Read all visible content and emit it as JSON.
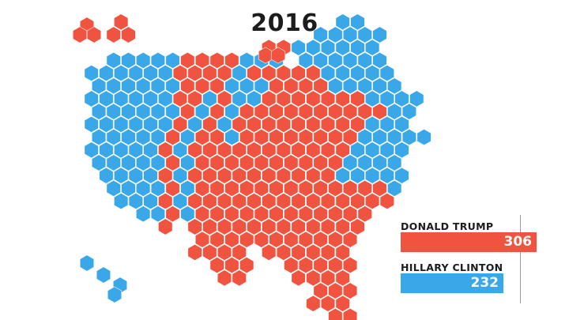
{
  "title": "2016",
  "colors": {
    "rep": "#f05440",
    "dem": "#3aa8e8",
    "grid": "#ffffff"
  },
  "legend": {
    "max_votes": 306,
    "candidates": [
      {
        "name": "DONALD TRUMP",
        "votes": "306",
        "value": 306,
        "color": "#f05440"
      },
      {
        "name": "HILLARY CLINTON",
        "votes": "232",
        "value": 232,
        "color": "#3aa8e8"
      }
    ]
  },
  "map_rows": [
    {
      "row": 0,
      "segments": [
        [
          "R",
          3,
          1
        ],
        [
          "D",
          18,
          2
        ]
      ]
    },
    {
      "row": 1,
      "segments": [
        [
          "R",
          2,
          2
        ],
        [
          "D",
          16,
          5
        ]
      ]
    },
    {
      "row": 2,
      "segments": [
        [
          "R",
          13,
          2
        ],
        [
          "D",
          15,
          6
        ]
      ]
    },
    {
      "row": 3,
      "segments": [
        [
          "D",
          2,
          6
        ],
        [
          "R",
          7,
          4
        ],
        [
          "D",
          11,
          3
        ],
        [
          "R",
          17,
          1
        ],
        [
          "D",
          15,
          6
        ]
      ]
    },
    {
      "row": 4,
      "segments": [
        [
          "D",
          1,
          6
        ],
        [
          "R",
          7,
          4
        ],
        [
          "D",
          11,
          2
        ],
        [
          "R",
          12,
          2
        ],
        [
          "R",
          14,
          3
        ],
        [
          "D",
          17,
          5
        ]
      ]
    },
    {
      "row": 5,
      "segments": [
        [
          "D",
          1,
          6
        ],
        [
          "R",
          7,
          3
        ],
        [
          "D",
          10,
          3
        ],
        [
          "R",
          13,
          3
        ],
        [
          "R",
          14,
          3
        ],
        [
          "D",
          17,
          5
        ]
      ]
    },
    {
      "row": 6,
      "segments": [
        [
          "D",
          1,
          6
        ],
        [
          "R",
          7,
          2
        ],
        [
          "D",
          9,
          1
        ],
        [
          "R",
          10,
          1
        ],
        [
          "D",
          11,
          2
        ],
        [
          "R",
          13,
          3
        ],
        [
          "R",
          14,
          6
        ],
        [
          "D",
          20,
          4
        ]
      ]
    },
    {
      "row": 7,
      "segments": [
        [
          "D",
          1,
          6
        ],
        [
          "R",
          7,
          1
        ],
        [
          "D",
          8,
          1
        ],
        [
          "R",
          9,
          1
        ],
        [
          "D",
          10,
          1
        ],
        [
          "R",
          11,
          5
        ],
        [
          "D",
          16,
          1
        ],
        [
          "R",
          14,
          7
        ],
        [
          "D",
          21,
          2
        ]
      ]
    },
    {
      "row": 8,
      "segments": [
        [
          "D",
          1,
          6
        ],
        [
          "R",
          7,
          1
        ],
        [
          "D",
          8,
          1
        ],
        [
          "R",
          9,
          1
        ],
        [
          "D",
          10,
          1
        ],
        [
          "R",
          11,
          5
        ],
        [
          "D",
          16,
          3
        ],
        [
          "R",
          16,
          4
        ],
        [
          "D",
          20,
          3
        ]
      ]
    },
    {
      "row": 9,
      "segments": [
        [
          "D",
          1,
          5
        ],
        [
          "R",
          6,
          1
        ],
        [
          "D",
          7,
          1
        ],
        [
          "R",
          8,
          2
        ],
        [
          "D",
          10,
          1
        ],
        [
          "R",
          11,
          5
        ],
        [
          "D",
          16,
          3
        ],
        [
          "R",
          16,
          3
        ],
        [
          "D",
          19,
          5
        ]
      ]
    },
    {
      "row": 10,
      "segments": [
        [
          "D",
          1,
          5
        ],
        [
          "R",
          6,
          1
        ],
        [
          "D",
          7,
          1
        ],
        [
          "R",
          8,
          3
        ],
        [
          "R",
          11,
          5
        ],
        [
          "D",
          16,
          3
        ],
        [
          "R",
          16,
          3
        ],
        [
          "D",
          19,
          4
        ]
      ]
    },
    {
      "row": 11,
      "segments": [
        [
          "D",
          1,
          5
        ],
        [
          "R",
          6,
          1
        ],
        [
          "D",
          7,
          1
        ],
        [
          "R",
          8,
          8
        ],
        [
          "D",
          16,
          3
        ],
        [
          "R",
          16,
          2
        ],
        [
          "D",
          18,
          4
        ]
      ]
    },
    {
      "row": 12,
      "segments": [
        [
          "D",
          2,
          4
        ],
        [
          "R",
          6,
          1
        ],
        [
          "D",
          7,
          1
        ],
        [
          "R",
          8,
          10
        ],
        [
          "D",
          18,
          5
        ]
      ]
    },
    {
      "row": 13,
      "segments": [
        [
          "D",
          2,
          4
        ],
        [
          "R",
          6,
          1
        ],
        [
          "D",
          7,
          1
        ],
        [
          "R",
          8,
          13
        ],
        [
          "D",
          21,
          1
        ]
      ]
    },
    {
      "row": 14,
      "segments": [
        [
          "D",
          3,
          3
        ],
        [
          "R",
          6,
          1
        ],
        [
          "D",
          7,
          1
        ],
        [
          "R",
          8,
          14
        ]
      ]
    },
    {
      "row": 15,
      "segments": [
        [
          "D",
          4,
          2
        ],
        [
          "R",
          6,
          1
        ],
        [
          "D",
          7,
          1
        ],
        [
          "R",
          8,
          12
        ]
      ]
    },
    {
      "row": 16,
      "segments": [
        [
          "R",
          6,
          1
        ],
        [
          "R",
          8,
          12
        ]
      ]
    },
    {
      "row": 17,
      "segments": [
        [
          "R",
          8,
          11
        ]
      ]
    },
    {
      "row": 18,
      "segments": [
        [
          "R",
          8,
          4
        ],
        [
          "R",
          13,
          6
        ]
      ]
    },
    {
      "row": 19,
      "segments": [
        [
          "R",
          9,
          3
        ],
        [
          "R",
          14,
          5
        ]
      ]
    },
    {
      "row": 20,
      "segments": [
        [
          "R",
          10,
          2
        ],
        [
          "R",
          15,
          4
        ]
      ]
    },
    {
      "row": 21,
      "segments": [
        [
          "R",
          16,
          3
        ]
      ]
    },
    {
      "row": 22,
      "segments": [
        [
          "R",
          16,
          3
        ]
      ]
    },
    {
      "row": 23,
      "segments": [
        [
          "R",
          17,
          2
        ]
      ]
    },
    {
      "row": 24,
      "segments": [
        [
          "R",
          17,
          1
        ]
      ]
    }
  ],
  "extra_hexes": [
    [
      "R",
      -3,
      1
    ],
    [
      "R",
      -4,
      2
    ],
    [
      "R",
      -3,
      2
    ],
    [
      "R",
      8,
      2
    ],
    [
      "R",
      9,
      2
    ],
    [
      "D",
      -3,
      21
    ],
    [
      "D",
      -2,
      22
    ],
    [
      "D",
      -1,
      23
    ]
  ]
}
